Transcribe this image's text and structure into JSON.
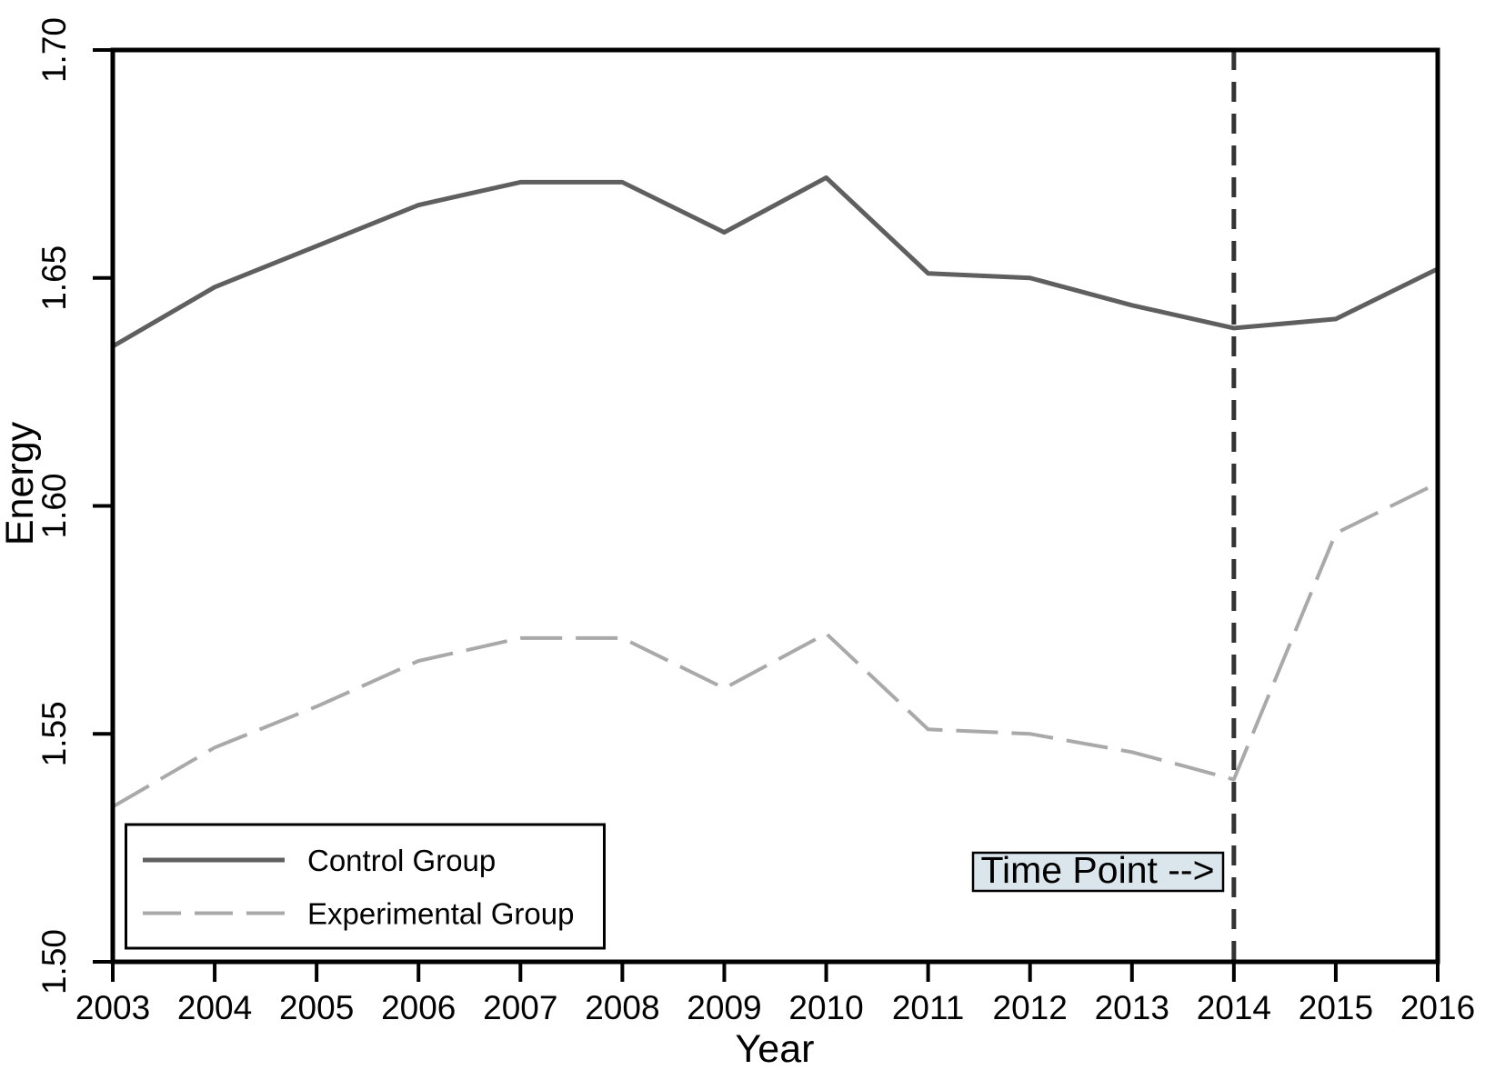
{
  "chart_data": {
    "type": "line",
    "title": "",
    "xlabel": "Year",
    "ylabel": "Energy",
    "x": [
      2003,
      2004,
      2005,
      2006,
      2007,
      2008,
      2009,
      2010,
      2011,
      2012,
      2013,
      2014,
      2015,
      2016
    ],
    "xlim": [
      2003,
      2016
    ],
    "ylim": [
      1.5,
      1.7
    ],
    "xtick_labels": [
      "2003",
      "2004",
      "2005",
      "2006",
      "2007",
      "2008",
      "2009",
      "2010",
      "2011",
      "2012",
      "2013",
      "2014",
      "2015",
      "2016"
    ],
    "yticks": [
      1.5,
      1.55,
      1.6,
      1.65,
      1.7
    ],
    "ytick_labels": [
      "1.50",
      "1.55",
      "1.60",
      "1.65",
      "1.70"
    ],
    "grid": false,
    "legend_position": "bottom-left",
    "series": [
      {
        "name": "Control Group",
        "line_style": "solid",
        "color": "#5f5f5f",
        "values": [
          1.635,
          1.648,
          1.657,
          1.666,
          1.671,
          1.671,
          1.66,
          1.672,
          1.651,
          1.65,
          1.644,
          1.639,
          1.641,
          1.652
        ]
      },
      {
        "name": "Experimental Group",
        "line_style": "dashed",
        "color": "#a9a9a9",
        "values": [
          1.534,
          1.547,
          1.556,
          1.566,
          1.571,
          1.571,
          1.56,
          1.572,
          1.551,
          1.55,
          1.546,
          1.54,
          1.594,
          1.605
        ]
      }
    ],
    "annotations": {
      "vline": {
        "x": 2014,
        "style": "dashed",
        "color": "#333333"
      },
      "time_point_label": {
        "text": "Time Point -->",
        "fill": "#dbe6ec",
        "border_color": "#000000"
      }
    }
  }
}
